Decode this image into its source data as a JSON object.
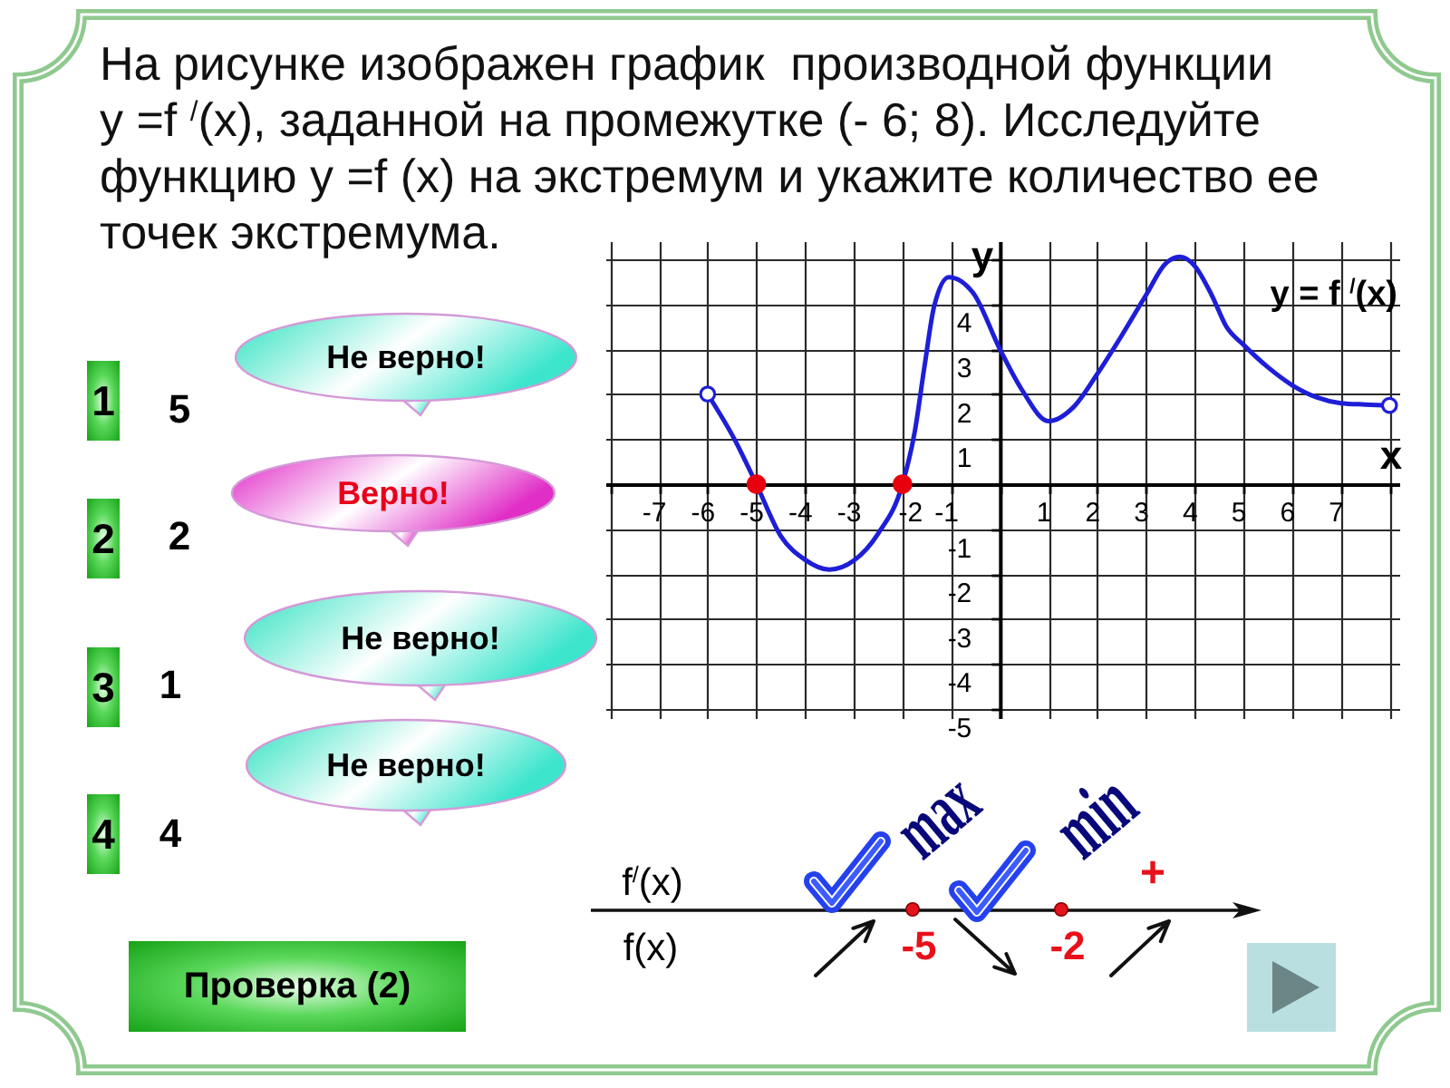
{
  "chart_data": {
    "type": "line",
    "title": "На рисунке изображен график  производной функции\nу =f $^{/}$(x), заданной на промежутке (- 6; 8). Исследуйте функцию у =f (x) на экстремум и укажите количество ее точек экстремума.",
    "xlabel": "x",
    "ylabel": "y",
    "xlim": [
      -8.1,
      8.2
    ],
    "ylim": [
      -5.2,
      5.4
    ],
    "xticks": [
      {
        "value": -8,
        "label": null
      },
      -7,
      -6,
      -5,
      -4,
      -3,
      -2,
      -1,
      {
        "value": 0,
        "label": null
      },
      1,
      2,
      3,
      4,
      5,
      6,
      7,
      {
        "value": 8,
        "label": null
      }
    ],
    "yticks": [
      -5,
      -4,
      -3,
      -2,
      -1,
      {
        "value": 0,
        "label": null
      },
      1,
      2,
      3,
      4,
      {
        "value": 5,
        "label": null
      }
    ],
    "grid": true,
    "marker": "none",
    "series": [
      {
        "name": "y = f $^{/}$(x)",
        "color": "#1e1ed8",
        "x": [
          -6,
          -5.45,
          -5,
          -4.5,
          -4,
          -3.5,
          -3,
          -2.5,
          -2,
          -1.75,
          -1.55,
          -1.35,
          -1.05,
          -0.55,
          0,
          0.45,
          1,
          1.5,
          2,
          2.5,
          3,
          3.4,
          3.7,
          4,
          4.35,
          4.65,
          5,
          5.5,
          6,
          6.5,
          7,
          7.5,
          8
        ],
        "values": [
          2,
          1,
          0,
          -1.15,
          -1.68,
          -1.9,
          -1.7,
          -1.1,
          0,
          1.15,
          2.6,
          3.95,
          4.6,
          4.25,
          3,
          2.1,
          1.4,
          1.7,
          2.45,
          3.3,
          4.2,
          4.9,
          5.05,
          4.85,
          4.2,
          3.5,
          3.1,
          2.6,
          2.2,
          1.93,
          1.8,
          1.77,
          1.75
        ]
      },
      {
        "type": "scatter",
        "color": "#1e1ed8",
        "marker": "circle",
        "x": [
          -6,
          8
        ],
        "values": [
          2,
          1.75
        ]
      },
      {
        "type": "scatter",
        "color": "#e8000e",
        "marker": "circle",
        "x": [
          -5,
          -2
        ],
        "values": [
          0,
          0
        ]
      }
    ],
    "annotations": [
      "1",
      "2",
      "3",
      "4",
      "5",
      "2",
      "1",
      "4",
      "Не верно!",
      "Верно!",
      "Не верно!",
      "Не верно!",
      "Проверка (2)",
      "f$^{/}$(x)",
      "f(x)",
      "-5",
      "-2",
      "+",
      "max",
      "min"
    ]
  }
}
